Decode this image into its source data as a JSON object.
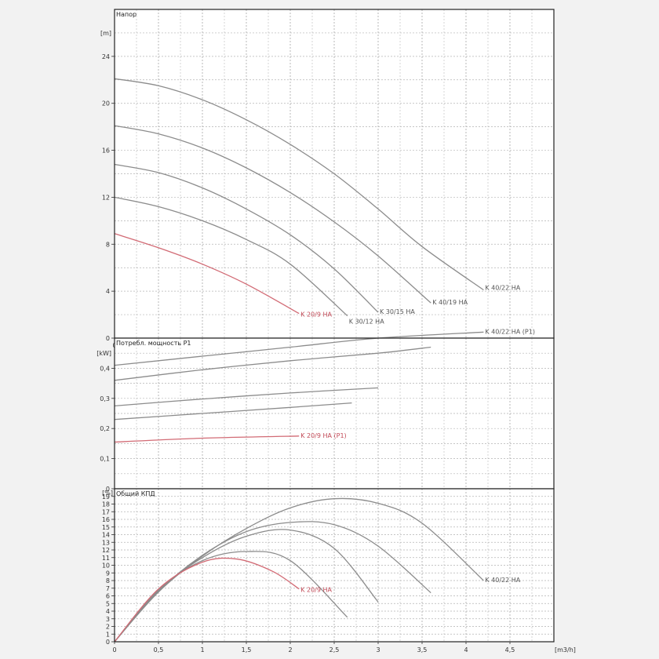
{
  "chart_data": [
    {
      "type": "line",
      "title": "Напор",
      "ylabel": "[m]",
      "xlim": [
        0,
        5
      ],
      "ylim": [
        0,
        28
      ],
      "xticks": [
        "0",
        "0,5",
        "1",
        "1,5",
        "2",
        "2,5",
        "3",
        "3,5",
        "4",
        "4,5"
      ],
      "yticks": [
        0,
        4,
        8,
        12,
        16,
        20,
        24
      ],
      "grid": true,
      "series": [
        {
          "name": "K 40/22 HA",
          "color": "#8c8c8c",
          "x": [
            0,
            0.5,
            1,
            1.5,
            2,
            2.5,
            3,
            3.5,
            4.2
          ],
          "y": [
            22.1,
            21.5,
            20.3,
            18.6,
            16.5,
            14.0,
            11.0,
            7.8,
            4.1
          ]
        },
        {
          "name": "K 40/19 HA",
          "color": "#8c8c8c",
          "x": [
            0,
            0.5,
            1,
            1.5,
            2,
            2.5,
            3,
            3.6
          ],
          "y": [
            18.1,
            17.4,
            16.2,
            14.5,
            12.4,
            9.9,
            7.0,
            3.0
          ]
        },
        {
          "name": "K 30/15 HA",
          "color": "#8c8c8c",
          "x": [
            0,
            0.5,
            1,
            1.5,
            2,
            2.5,
            3
          ],
          "y": [
            14.8,
            14.1,
            12.8,
            11.0,
            8.8,
            5.9,
            2.2
          ]
        },
        {
          "name": "K 30/12 HA",
          "color": "#8c8c8c",
          "x": [
            0,
            0.5,
            1,
            1.5,
            2,
            2.65
          ],
          "y": [
            12.0,
            11.2,
            10.0,
            8.4,
            6.3,
            1.9
          ]
        },
        {
          "name": "K 20/9 HA",
          "color": "#d26b75",
          "x": [
            0,
            0.5,
            1,
            1.5,
            2.1
          ],
          "y": [
            8.9,
            7.7,
            6.3,
            4.6,
            2.1
          ]
        }
      ]
    },
    {
      "type": "line",
      "title": "Потребл. мощность P1",
      "ylabel": "[kW]",
      "xlim": [
        0,
        5
      ],
      "ylim": [
        0,
        0.5
      ],
      "yticks": [
        "0",
        "0,1",
        "0,2",
        "0,3",
        "0,4"
      ],
      "grid": true,
      "series": [
        {
          "name": "K 40/22 HA (P1)",
          "color": "#8c8c8c",
          "x": [
            0,
            1,
            2,
            3,
            4.2
          ],
          "y": [
            0.41,
            0.44,
            0.47,
            0.5,
            0.52
          ]
        },
        {
          "name": "",
          "color": "#8c8c8c",
          "x": [
            0,
            1,
            2,
            3,
            3.6
          ],
          "y": [
            0.36,
            0.395,
            0.425,
            0.45,
            0.47
          ]
        },
        {
          "name": "",
          "color": "#8c8c8c",
          "x": [
            0,
            1,
            2,
            3
          ],
          "y": [
            0.275,
            0.298,
            0.318,
            0.335
          ]
        },
        {
          "name": "",
          "color": "#8c8c8c",
          "x": [
            0,
            1,
            2,
            2.7
          ],
          "y": [
            0.23,
            0.25,
            0.27,
            0.285
          ]
        },
        {
          "name": "K 20/9 HA (P1)",
          "color": "#d26b75",
          "x": [
            0,
            1,
            2.1
          ],
          "y": [
            0.155,
            0.168,
            0.175
          ]
        }
      ]
    },
    {
      "type": "line",
      "title": "Общий КПД",
      "ylabel": "[%]",
      "xlabel": "[m3/h]",
      "xlim": [
        0,
        5
      ],
      "ylim": [
        0,
        20
      ],
      "yticks": [
        0,
        1,
        2,
        3,
        4,
        5,
        6,
        7,
        8,
        9,
        10,
        11,
        12,
        13,
        14,
        15,
        16,
        17,
        18,
        19
      ],
      "grid": true,
      "series": [
        {
          "name": "K 40/22 HA",
          "color": "#8c8c8c",
          "x": [
            0,
            0.5,
            1,
            1.5,
            2,
            2.5,
            3,
            3.5,
            4.2
          ],
          "y": [
            0,
            6.5,
            11.2,
            14.8,
            17.5,
            18.7,
            18.1,
            15.5,
            8.0
          ]
        },
        {
          "name": "",
          "color": "#8c8c8c",
          "x": [
            0,
            0.5,
            1,
            1.5,
            2,
            2.5,
            3,
            3.6
          ],
          "y": [
            0,
            6.6,
            11.3,
            14.4,
            15.6,
            15.3,
            12.5,
            6.4
          ]
        },
        {
          "name": "",
          "color": "#8c8c8c",
          "x": [
            0,
            0.5,
            1,
            1.5,
            2,
            2.5,
            3
          ],
          "y": [
            0,
            6.7,
            11.0,
            13.8,
            14.6,
            12.2,
            5.2
          ]
        },
        {
          "name": "",
          "color": "#8c8c8c",
          "x": [
            0,
            0.5,
            1,
            1.5,
            2,
            2.65
          ],
          "y": [
            0,
            6.8,
            10.6,
            11.8,
            10.6,
            3.2
          ]
        },
        {
          "name": "K 20/9 HA",
          "color": "#d26b75",
          "x": [
            0,
            0.5,
            1,
            1.4,
            1.8,
            2.1
          ],
          "y": [
            0,
            6.9,
            10.4,
            10.8,
            9.2,
            6.9
          ]
        }
      ]
    }
  ]
}
